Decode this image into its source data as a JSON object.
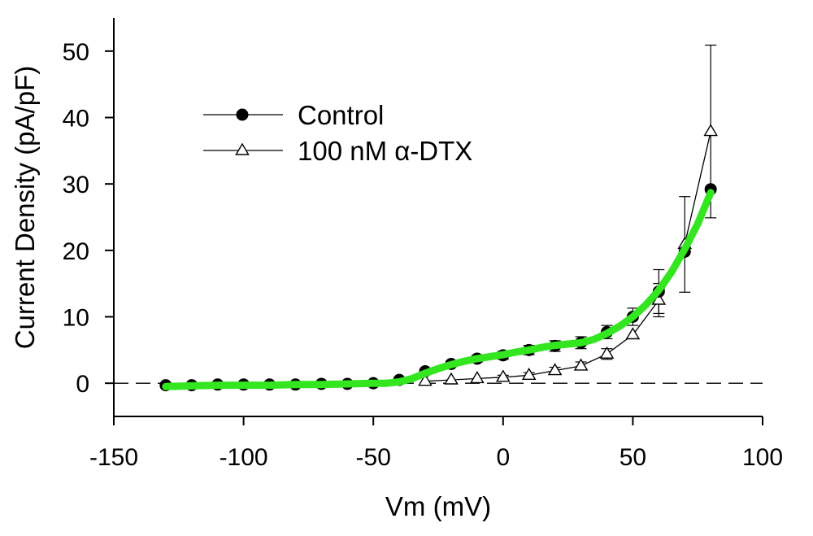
{
  "chart_data": {
    "type": "line",
    "xlabel": "Vm (mV)",
    "ylabel": "Current Density (pA/pF)",
    "xlim": [
      -150,
      100
    ],
    "ylim": [
      -5,
      55
    ],
    "x_ticks": [
      -150,
      -100,
      -50,
      0,
      50,
      100
    ],
    "x_tick_labels": [
      "-150",
      "-100",
      "-50",
      "0",
      "50",
      "100"
    ],
    "y_ticks": [
      0,
      10,
      20,
      30,
      40,
      50
    ],
    "y_tick_labels": [
      "0",
      "10",
      "20",
      "30",
      "40",
      "50"
    ],
    "zero_line": "dashed",
    "grid": false,
    "legend_position": "top-left",
    "series": [
      {
        "name": "Control",
        "marker": "filled-circle",
        "color": "#000000",
        "x": [
          -130,
          -120,
          -110,
          -100,
          -90,
          -80,
          -70,
          -60,
          -50,
          -40,
          -30,
          -20,
          -10,
          0,
          10,
          20,
          30,
          40,
          50,
          60,
          70,
          80
        ],
        "y": [
          -0.3,
          -0.3,
          -0.2,
          -0.2,
          -0.2,
          -0.2,
          -0.1,
          -0.1,
          0,
          0.5,
          1.8,
          2.9,
          3.7,
          4.2,
          5.0,
          5.6,
          6.1,
          7.7,
          10.0,
          13.8,
          19.8,
          29.2
        ],
        "error": [
          0,
          0,
          0,
          0,
          0,
          0,
          0,
          0,
          0,
          0,
          0.3,
          0.4,
          0.5,
          0.6,
          0.7,
          0.8,
          0.9,
          1.0,
          1.3,
          3.3,
          0,
          0
        ]
      },
      {
        "name": "100 nM α-DTX",
        "marker": "open-triangle",
        "color": "#000000",
        "x": [
          -30,
          -20,
          -10,
          0,
          10,
          20,
          30,
          40,
          50,
          60,
          70,
          80
        ],
        "y": [
          0.3,
          0.5,
          0.7,
          0.9,
          1.2,
          1.9,
          2.6,
          4.4,
          7.3,
          12.5,
          20.9,
          37.9
        ],
        "error": [
          0,
          0,
          0,
          0.3,
          0.4,
          0.5,
          0.6,
          0.8,
          0,
          2.5,
          7.2,
          13.0
        ]
      }
    ],
    "fit_curve": {
      "color": "#33e620",
      "x": [
        -130,
        -120,
        -110,
        -100,
        -90,
        -80,
        -70,
        -60,
        -50,
        -45,
        -40,
        -35,
        -30,
        -25,
        -20,
        -15,
        -10,
        -5,
        0,
        5,
        10,
        15,
        20,
        25,
        30,
        35,
        40,
        45,
        50,
        55,
        60,
        65,
        70,
        75,
        80
      ],
      "y": [
        -0.5,
        -0.4,
        -0.3,
        -0.3,
        -0.3,
        -0.2,
        -0.2,
        -0.1,
        0,
        0,
        0.2,
        0.7,
        1.5,
        2.2,
        2.8,
        3.3,
        3.7,
        4.0,
        4.3,
        4.7,
        5.0,
        5.4,
        5.7,
        5.9,
        6.1,
        6.6,
        7.5,
        8.6,
        10.0,
        11.8,
        14.0,
        16.8,
        20.2,
        24.0,
        28.7
      ]
    }
  }
}
